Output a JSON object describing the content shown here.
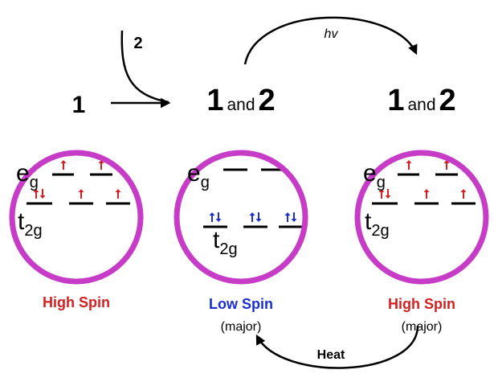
{
  "reactant_label": "1",
  "added_label": "2",
  "photo_label": "hv",
  "thermal_label": "Heat",
  "states": [
    {
      "compound": [
        "1"
      ],
      "eg": {
        "base": "e",
        "sub": "g"
      },
      "t2g": {
        "base": "t",
        "sub": "2g"
      },
      "spin": "High Spin"
    },
    {
      "compound": [
        "1",
        "and",
        "2"
      ],
      "eg": {
        "base": "e",
        "sub": "g"
      },
      "t2g": {
        "base": "t",
        "sub": "2g"
      },
      "spin": "Low Spin",
      "note": "(major)"
    },
    {
      "compound": [
        "1",
        "and",
        "2"
      ],
      "eg": {
        "base": "e",
        "sub": "g"
      },
      "t2g": {
        "base": "t",
        "sub": "2g"
      },
      "spin": "High Spin",
      "note": "(major)"
    }
  ]
}
